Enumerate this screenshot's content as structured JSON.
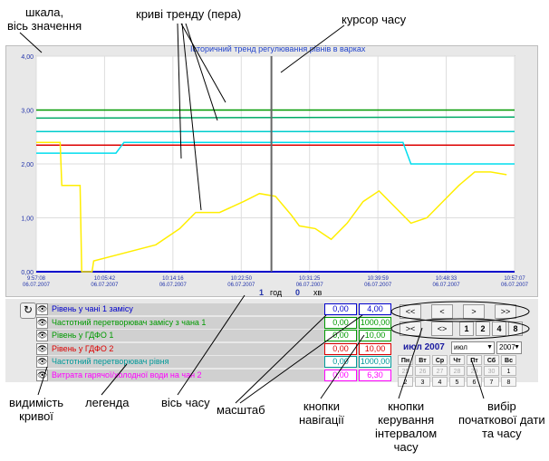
{
  "callouts": {
    "scale": "шкала,\nвісь значення",
    "pens": "криві тренду (пера)",
    "cursor": "курсор часу",
    "visibility": "видимість\nкривої",
    "legend": "легенда",
    "time_axis": "вісь часу",
    "scale_fields": "масштаб",
    "nav_buttons": "кнопки\nнавігації",
    "interval_buttons": "кнопки\nкерування\nінтервалом\nчасу",
    "date_select": "вибір\nпочаткової дати\nта часу"
  },
  "chart_data": {
    "type": "line",
    "title": "Історичний тренд регулювання рівнів в варках",
    "ylim": [
      0,
      4
    ],
    "y_ticks": [
      "0,00",
      "1,00",
      "2,00",
      "3,00",
      "4,00"
    ],
    "x_ticks": [
      {
        "time": "9:57:08",
        "date": "06.07.2007"
      },
      {
        "time": "10:05:42",
        "date": "06.07.2007"
      },
      {
        "time": "10:14:16",
        "date": "06.07.2007"
      },
      {
        "time": "10:22:50",
        "date": "06.07.2007"
      },
      {
        "time": "10:31:25",
        "date": "06.07.2007"
      },
      {
        "time": "10:39:59",
        "date": "06.07.2007"
      },
      {
        "time": "10:48:33",
        "date": "06.07.2007"
      },
      {
        "time": "10:57:07",
        "date": "06.07.2007"
      }
    ],
    "grid": true,
    "x_minutes_range": [
      0,
      60
    ],
    "cursor_minute": 29.5,
    "interval_hours": "1",
    "interval_hours_label": "год",
    "interval_min": "0",
    "interval_min_label": "хв",
    "series": [
      {
        "name": "Рівень у чані 1 замісу",
        "color": "#0000cc",
        "points": [
          [
            0,
            0.0
          ],
          [
            60,
            0.0
          ]
        ]
      },
      {
        "name": "Частотний перетворювач замісу з чана 1",
        "color": "#009900",
        "points": [
          [
            0,
            3.0
          ],
          [
            60,
            3.0
          ]
        ]
      },
      {
        "name": "Рівень у ГДФО 1",
        "color": "#00aa66",
        "points": [
          [
            0,
            2.85
          ],
          [
            60,
            2.87
          ]
        ]
      },
      {
        "name": "Рівень у ГДФО 2",
        "color": "#dd0000",
        "points": [
          [
            0,
            2.35
          ],
          [
            60,
            2.35
          ]
        ]
      },
      {
        "name": "Частотний перетворювач рівня",
        "color": "#00cccc",
        "points": [
          [
            0,
            2.6
          ],
          [
            60,
            2.6
          ]
        ]
      },
      {
        "name": "Витрата гарячої/холодної води на чан 2",
        "color": "#00ddee",
        "points": [
          [
            0,
            2.2
          ],
          [
            10,
            2.2
          ],
          [
            11,
            2.4
          ],
          [
            46,
            2.4
          ],
          [
            47,
            2.0
          ],
          [
            60,
            2.0
          ]
        ]
      },
      {
        "name": "yellow",
        "color": "#ffee00",
        "points": [
          [
            0,
            2.4
          ],
          [
            3,
            2.4
          ],
          [
            3.2,
            1.6
          ],
          [
            5.5,
            1.6
          ],
          [
            5.7,
            0
          ],
          [
            7,
            0
          ],
          [
            7.2,
            0.2
          ],
          [
            15,
            0.5
          ],
          [
            18,
            0.8
          ],
          [
            20,
            1.1
          ],
          [
            23,
            1.1
          ],
          [
            26,
            1.3
          ],
          [
            28,
            1.45
          ],
          [
            30,
            1.4
          ],
          [
            32,
            1.05
          ],
          [
            33,
            0.85
          ],
          [
            35,
            0.8
          ],
          [
            37,
            0.6
          ],
          [
            39,
            0.9
          ],
          [
            41,
            1.3
          ],
          [
            43,
            1.5
          ],
          [
            45,
            1.2
          ],
          [
            47,
            0.9
          ],
          [
            49,
            1.0
          ],
          [
            51,
            1.3
          ],
          [
            53,
            1.6
          ],
          [
            55,
            1.85
          ],
          [
            57,
            1.85
          ],
          [
            59,
            1.8
          ]
        ]
      }
    ]
  },
  "legend": {
    "items": [
      {
        "name": "Рівень у чані 1 замісу",
        "color": "#0000cc",
        "scale_min": "0,00",
        "scale_max": "4,00"
      },
      {
        "name": "Частотний перетворювач замісу з чана 1",
        "color": "#009900",
        "scale_min": "0,00",
        "scale_max": "1000,00"
      },
      {
        "name": "Рівень у ГДФО 1",
        "color": "#009900",
        "scale_min": "0,00",
        "scale_max": "10,00"
      },
      {
        "name": "Рівень у ГДФО 2",
        "color": "#dd0000",
        "scale_min": "0,00",
        "scale_max": "10,00"
      },
      {
        "name": "Частотний перетворювач рівня",
        "color": "#009999",
        "scale_min": "0,00",
        "scale_max": "1000,00"
      },
      {
        "name": "Витрата гарячої/холодної води на чан 2",
        "color": "#ff00ff",
        "scale_min": "0,00",
        "scale_max": "6,30"
      }
    ]
  },
  "nav": {
    "b1": "<<",
    "b2": "<",
    "b3": ">",
    "b4": ">>",
    "c1": "><",
    "c2": "<>",
    "c3": "1",
    "c4": "2",
    "c5": "4",
    "c6": "8"
  },
  "calendar": {
    "title": "июл 2007",
    "month_select": "июл",
    "year_select": "2007",
    "days": [
      "Пн",
      "Вт",
      "Ср",
      "Чт",
      "Пт",
      "Сб",
      "Вс"
    ],
    "rows": [
      [
        "25",
        "26",
        "27",
        "28",
        "29",
        "30",
        "1"
      ],
      [
        "2",
        "3",
        "4",
        "5",
        "6",
        "7",
        "8"
      ]
    ]
  }
}
